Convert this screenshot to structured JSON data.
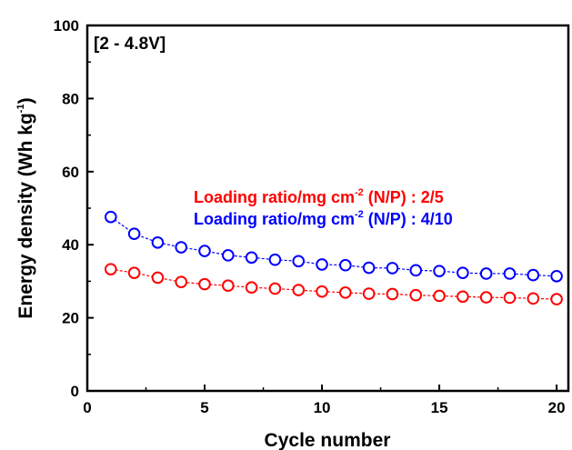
{
  "chart_data": {
    "type": "line",
    "annotation": "[2 - 4.8V]",
    "xlabel": "Cycle number",
    "ylabel_main": "Energy density (Wh kg",
    "ylabel_sup": "-1",
    "ylabel_end": ")",
    "xlim": [
      0,
      20.5
    ],
    "ylim": [
      0,
      100
    ],
    "xticks": [
      0,
      5,
      10,
      15,
      20
    ],
    "yticks": [
      0,
      20,
      40,
      60,
      80,
      100
    ],
    "grid": false,
    "legend_position": "center-right",
    "x": [
      1,
      2,
      3,
      4,
      5,
      6,
      7,
      8,
      9,
      10,
      11,
      12,
      13,
      14,
      15,
      16,
      17,
      18,
      19,
      20
    ],
    "series": [
      {
        "label_main": "Loading ratio/mg cm",
        "label_sup": "-2",
        "label_end": " (N/P) : 2/5",
        "color": "#ff0000",
        "values": [
          33.3,
          32.3,
          31.0,
          29.8,
          29.2,
          28.8,
          28.3,
          28.0,
          27.6,
          27.2,
          26.9,
          26.6,
          26.5,
          26.2,
          26.0,
          25.8,
          25.6,
          25.5,
          25.3,
          25.1
        ]
      },
      {
        "label_main": "Loading ratio/mg cm",
        "label_sup": "-2",
        "label_end": " (N/P) : 4/10",
        "color": "#0000ff",
        "values": [
          47.6,
          43.0,
          40.6,
          39.3,
          38.3,
          37.1,
          36.5,
          35.9,
          35.5,
          34.6,
          34.4,
          33.7,
          33.6,
          33.0,
          32.8,
          32.3,
          32.1,
          32.1,
          31.7,
          31.4
        ]
      }
    ]
  }
}
